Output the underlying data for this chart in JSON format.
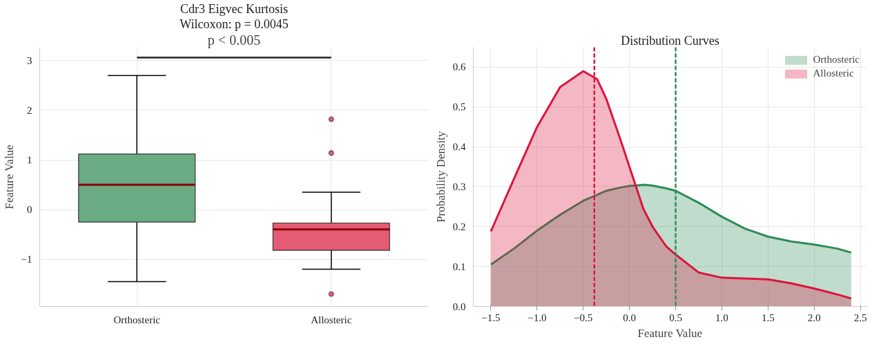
{
  "chart_data": [
    {
      "type": "box",
      "title": "Cdr3 Eigvec Kurtosis",
      "subtitle": "Wilcoxon: p = 0.0045",
      "ylabel": "Feature Value",
      "categories": [
        "Orthosteric",
        "Allosteric"
      ],
      "colors": [
        "#6aab84",
        "#e55a74"
      ],
      "boxes": [
        {
          "low": -1.45,
          "q1": -0.25,
          "median": 0.5,
          "q3": 1.12,
          "high": 2.7
        },
        {
          "low": -1.2,
          "q1": -0.82,
          "median": -0.4,
          "q3": -0.27,
          "high": 0.35,
          "outliers": [
            1.82,
            1.14,
            -1.7
          ]
        }
      ],
      "ylim": [
        -1.95,
        3.27
      ],
      "yticks": [
        {
          "value": -1,
          "label": "−1"
        },
        0,
        1,
        2,
        3
      ],
      "grid": true,
      "annotations": [
        "p < 0.005"
      ]
    },
    {
      "type": "area",
      "title": "Distribution Curves",
      "xlabel": "Feature Value",
      "ylabel": "Probability Density",
      "x": [
        -1.5,
        -1.25,
        -1.0,
        -0.75,
        -0.5,
        -0.35,
        -0.25,
        -0.1,
        0.0,
        0.1,
        0.15,
        0.25,
        0.4,
        0.5,
        0.75,
        1.0,
        1.25,
        1.5,
        1.75,
        2.0,
        2.25,
        2.4
      ],
      "series": [
        {
          "name": "Orthosteric",
          "color": "#2e8b57",
          "values": [
            0.105,
            0.145,
            0.19,
            0.23,
            0.265,
            0.28,
            0.29,
            0.298,
            0.302,
            0.304,
            0.305,
            0.303,
            0.296,
            0.29,
            0.26,
            0.225,
            0.195,
            0.175,
            0.163,
            0.155,
            0.145,
            0.135
          ]
        },
        {
          "name": "Allosteric",
          "color": "#dc143c",
          "values": [
            0.188,
            0.32,
            0.45,
            0.55,
            0.59,
            0.57,
            0.52,
            0.42,
            0.35,
            0.28,
            0.245,
            0.2,
            0.15,
            0.13,
            0.085,
            0.072,
            0.07,
            0.068,
            0.058,
            0.045,
            0.03,
            0.02
          ]
        }
      ],
      "ref_lines": [
        {
          "axis": "x",
          "value": -0.38,
          "color": "#dc143c",
          "line_style": "dashed"
        },
        {
          "axis": "x",
          "value": 0.5,
          "color": "#2e8b57",
          "line_style": "dashed"
        }
      ],
      "xlim": [
        -1.69,
        2.57
      ],
      "xticks": [
        {
          "value": -1.5,
          "label": "−1.5"
        },
        {
          "value": -1.0,
          "label": "−1.0"
        },
        {
          "value": -0.5,
          "label": "−0.5"
        },
        {
          "value": 0,
          "label": "0.0"
        },
        0.5,
        {
          "value": 1,
          "label": "1.0"
        },
        1.5,
        {
          "value": 2,
          "label": "2.0"
        },
        2.5
      ],
      "ylim": [
        0,
        0.65
      ],
      "yticks": [
        {
          "value": 0,
          "label": "0.0"
        },
        0.1,
        0.2,
        0.3,
        0.4,
        0.5,
        0.6
      ],
      "grid": true,
      "legend": "top right"
    }
  ]
}
